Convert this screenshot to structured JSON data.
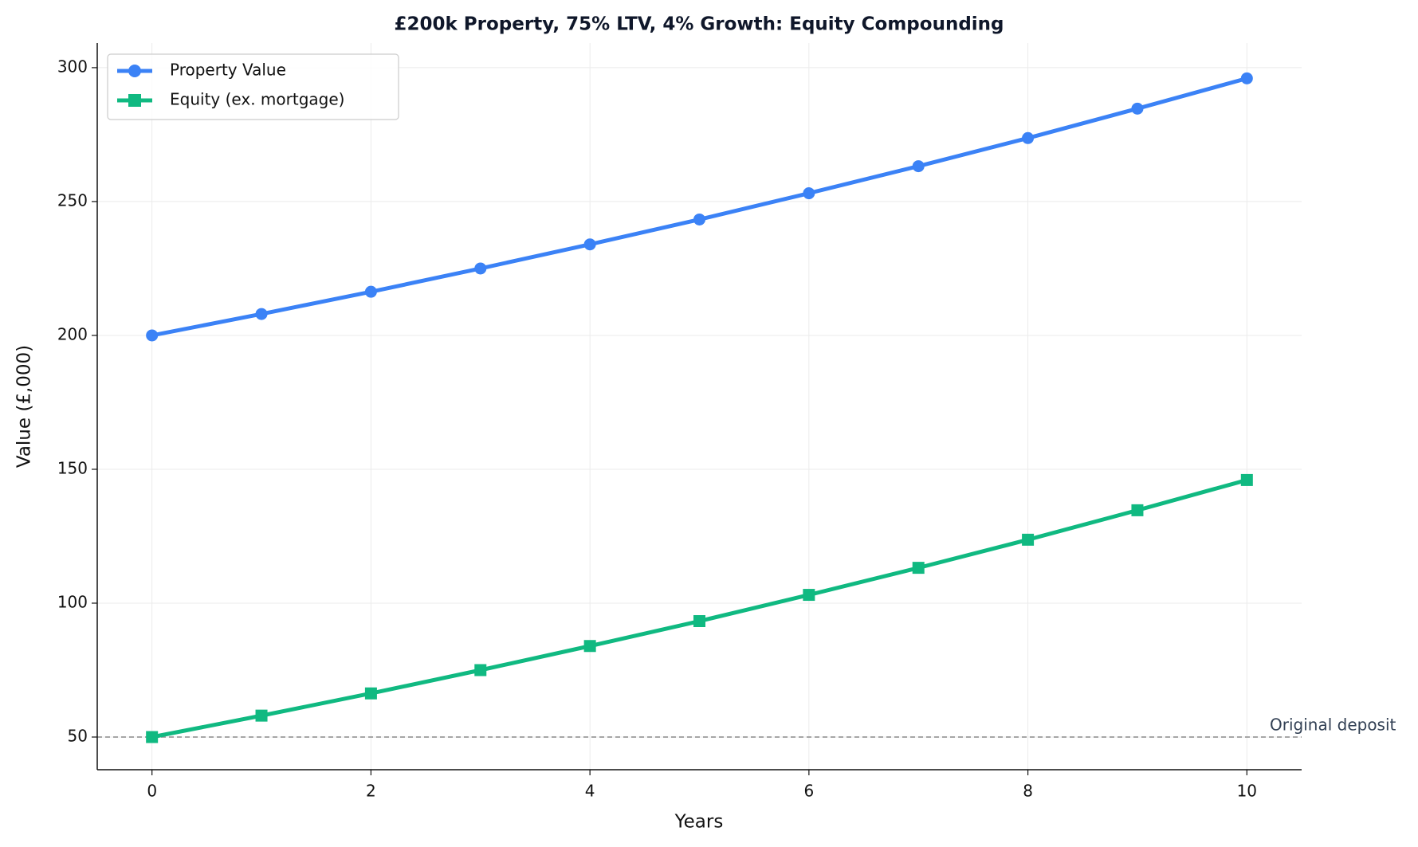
{
  "chart_data": {
    "type": "line",
    "title": "£200k Property, 75% LTV, 4% Growth: Equity Compounding",
    "x_label": "Years",
    "y_label": "Value (£,000)",
    "x": [
      0,
      1,
      2,
      3,
      4,
      5,
      6,
      7,
      8,
      9,
      10
    ],
    "series": [
      {
        "name": "Property Value",
        "color": "#3b82f6",
        "marker": "circle",
        "values": [
          200,
          208,
          216.3,
          225.0,
          234.0,
          243.3,
          253.1,
          263.2,
          273.7,
          284.7,
          296.0
        ]
      },
      {
        "name": "Equity (ex. mortgage)",
        "color": "#10b981",
        "marker": "square",
        "values": [
          50,
          58,
          66.3,
          75.0,
          84.0,
          93.3,
          103.1,
          113.2,
          123.7,
          134.7,
          146.0
        ]
      }
    ],
    "reference_line": {
      "value": 50,
      "label": "Original deposit",
      "color": "#999999"
    },
    "xlim": [
      -0.5,
      10.5
    ],
    "ylim": [
      37.8,
      309.2
    ],
    "xticks": [
      0,
      2,
      4,
      6,
      8,
      10
    ],
    "yticks": [
      50,
      100,
      150,
      200,
      250,
      300
    ],
    "grid": true,
    "legend": "upper-left"
  }
}
